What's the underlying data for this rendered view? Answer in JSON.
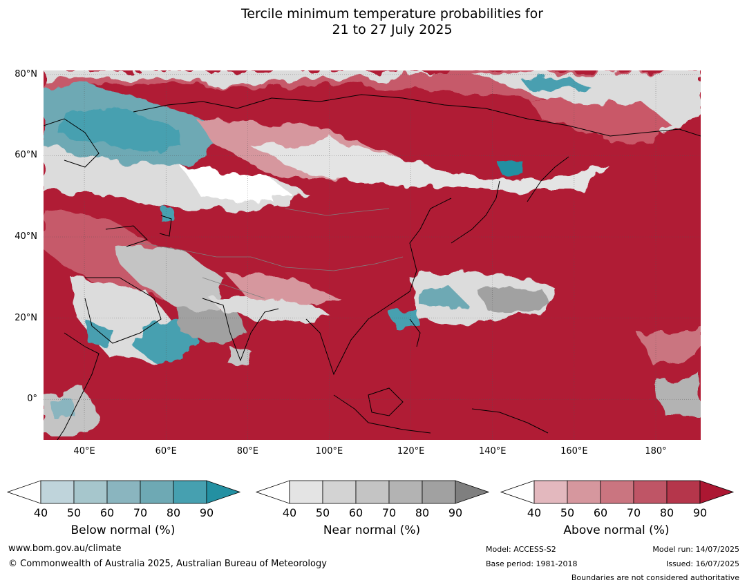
{
  "title_line1": "Tercile minimum temperature probabilities for",
  "title_line2": "21 to 27 July 2025",
  "map": {
    "lon_range": [
      30,
      191
    ],
    "lat_range": [
      -10,
      81
    ],
    "lat_labels": [
      "80°N",
      "60°N",
      "40°N",
      "20°N",
      "0°"
    ],
    "lat_values": [
      80,
      60,
      40,
      20,
      0
    ],
    "lon_labels": [
      "40°E",
      "60°E",
      "80°E",
      "100°E",
      "120°E",
      "140°E",
      "160°E",
      "180°"
    ],
    "lon_values": [
      40,
      60,
      80,
      100,
      120,
      140,
      160,
      180
    ],
    "colors": {
      "above_dominant": "#b01c35",
      "near_normal": "#dcdcdc",
      "below_normal": "#4a9fb0",
      "coastline": "#000000",
      "boundary": "#808080"
    }
  },
  "colorbars": [
    {
      "name": "below",
      "title": "Below normal (%)",
      "ticks": [
        "40",
        "50",
        "60",
        "70",
        "80",
        "90"
      ],
      "colors": [
        "#bfd4db",
        "#a6c6cc",
        "#8ab5bf",
        "#6ea9b4",
        "#46a0b0",
        "#2390a2"
      ]
    },
    {
      "name": "near",
      "title": "Near normal (%)",
      "ticks": [
        "40",
        "50",
        "60",
        "70",
        "80",
        "90"
      ],
      "colors": [
        "#e4e4e4",
        "#d3d3d3",
        "#c4c4c4",
        "#b3b3b3",
        "#a1a1a1",
        "#7f7f7f"
      ]
    },
    {
      "name": "above",
      "title": "Above normal (%)",
      "ticks": [
        "40",
        "50",
        "60",
        "70",
        "80",
        "90"
      ],
      "colors": [
        "#e3b8be",
        "#d6979e",
        "#ca7580",
        "#bf5566",
        "#b5364b",
        "#ac1732"
      ]
    }
  ],
  "footer": {
    "website": "www.bom.gov.au/climate",
    "copyright": "© Commonwealth of Australia 2025, Australian Bureau of Meteorology",
    "model": "Model: ACCESS-S2",
    "base_period": "Base period: 1981-2018",
    "model_run": "Model run: 14/07/2025",
    "issued": "Issued: 16/07/2025",
    "disclaimer": "Boundaries are not considered authoritative"
  }
}
